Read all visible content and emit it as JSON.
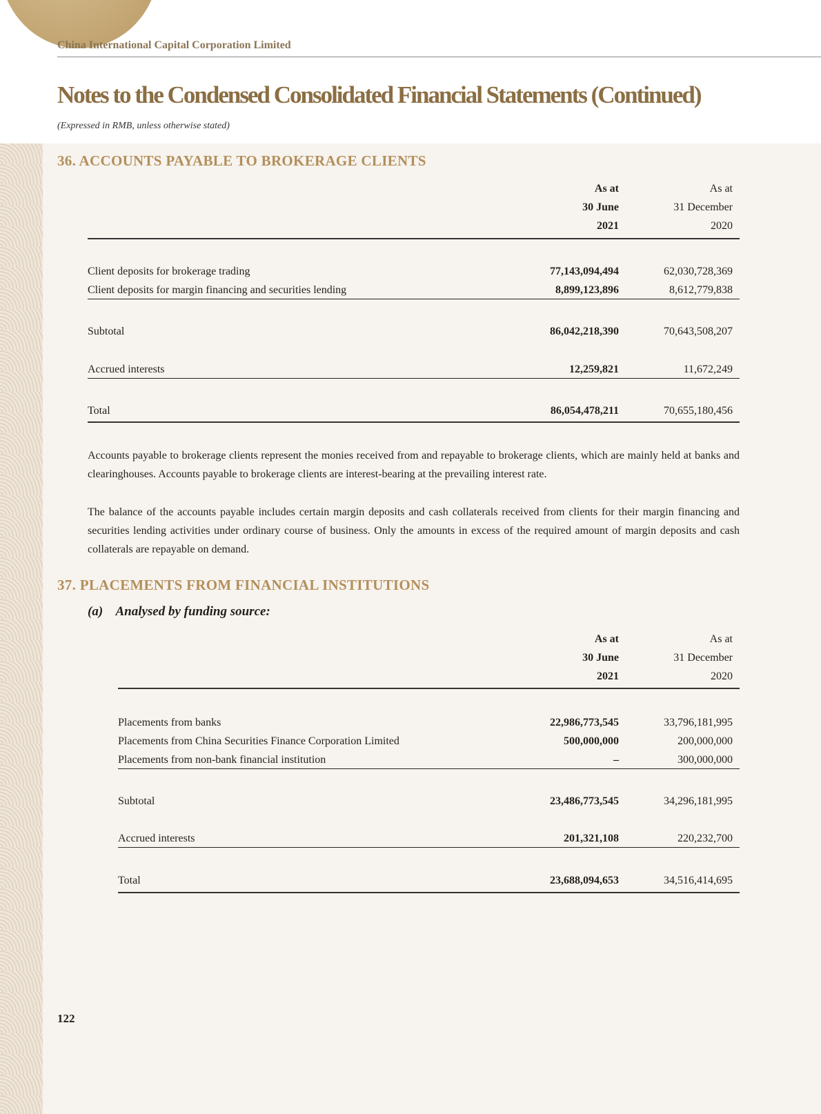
{
  "header": {
    "company": "China International Capital Corporation Limited",
    "title": "Notes to the Condensed Consolidated Financial Statements (Continued)",
    "subtitle": "(Expressed in RMB, unless otherwise stated)"
  },
  "note36": {
    "heading": "36.  ACCOUNTS PAYABLE TO BROKERAGE CLIENTS",
    "col1": [
      "As at",
      "30 June",
      "2021"
    ],
    "col2": [
      "As at",
      "31 December",
      "2020"
    ],
    "rows": [
      {
        "label": "Client deposits for brokerage trading",
        "v1": "77,143,094,494",
        "v2": "62,030,728,369"
      },
      {
        "label": "Client deposits for margin financing and securities lending",
        "v1": "8,899,123,896",
        "v2": "8,612,779,838"
      },
      {
        "label": "Subtotal",
        "v1": "86,042,218,390",
        "v2": "70,643,508,207"
      },
      {
        "label": "Accrued interests",
        "v1": "12,259,821",
        "v2": "11,672,249"
      },
      {
        "label": "Total",
        "v1": "86,054,478,211",
        "v2": "70,655,180,456"
      }
    ],
    "paragraphs": [
      "Accounts payable to brokerage clients represent the monies received from and repayable to brokerage clients, which are mainly held at banks and clearinghouses. Accounts payable to brokerage clients are interest-bearing at the prevailing interest rate.",
      "The balance of the accounts payable includes certain margin deposits and cash collaterals received from clients for their margin financing and securities lending activities under ordinary course of business. Only the amounts in excess of the required amount of margin deposits and cash collaterals are repayable on demand."
    ]
  },
  "note37": {
    "heading": "37.  PLACEMENTS FROM FINANCIAL INSTITUTIONS",
    "subheading": "(a)    Analysed by funding source:",
    "col1": [
      "As at",
      "30 June",
      "2021"
    ],
    "col2": [
      "As at",
      "31 December",
      "2020"
    ],
    "rows": [
      {
        "label": "Placements from banks",
        "v1": "22,986,773,545",
        "v2": "33,796,181,995"
      },
      {
        "label": "Placements from China Securities Finance Corporation Limited",
        "v1": "500,000,000",
        "v2": "200,000,000"
      },
      {
        "label": "Placements from non-bank financial institution",
        "v1": "–",
        "v2": "300,000,000"
      },
      {
        "label": "Subtotal",
        "v1": "23,486,773,545",
        "v2": "34,296,181,995"
      },
      {
        "label": "Accrued interests",
        "v1": "201,321,108",
        "v2": "220,232,700"
      },
      {
        "label": "Total",
        "v1": "23,688,094,653",
        "v2": "34,516,414,695"
      }
    ]
  },
  "footer": {
    "page_number": "122"
  },
  "colors": {
    "title": "#8b6e43",
    "section": "#b38f5b",
    "panel": "#f7f3ee"
  }
}
